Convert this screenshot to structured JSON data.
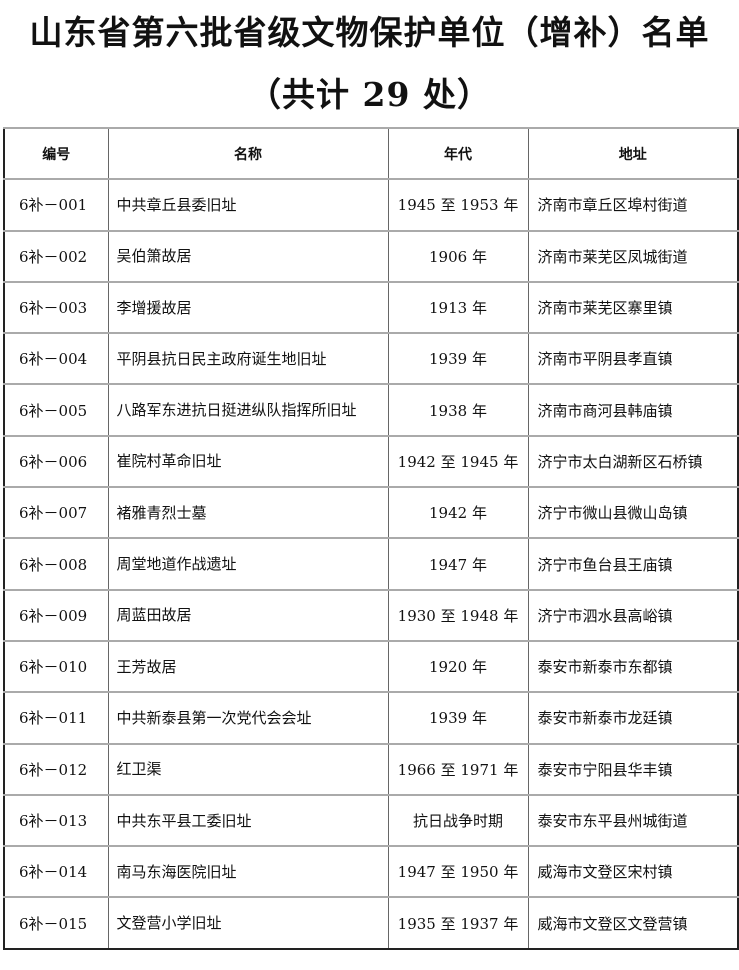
{
  "title": "山东省第六批省级文物保护单位（增补）名单",
  "subtitle": "（共计 29 处）",
  "table": {
    "headers": [
      "编号",
      "名称",
      "年代",
      "地址"
    ],
    "rows": [
      [
        "6补－001",
        "中共章丘县委旧址",
        "1945 至 1953 年",
        "济南市章丘区埠村街道"
      ],
      [
        "6补－002",
        "吴伯箫故居",
        "1906 年",
        "济南市莱芜区凤城街道"
      ],
      [
        "6补－003",
        "李增援故居",
        "1913 年",
        "济南市莱芜区寨里镇"
      ],
      [
        "6补－004",
        "平阴县抗日民主政府诞生地旧址",
        "1939 年",
        "济南市平阴县孝直镇"
      ],
      [
        "6补－005",
        "八路军东进抗日挺进纵队指挥所旧址",
        "1938 年",
        "济南市商河县韩庙镇"
      ],
      [
        "6补－006",
        "崔院村革命旧址",
        "1942 至 1945 年",
        "济宁市太白湖新区石桥镇"
      ],
      [
        "6补－007",
        "褚雅青烈士墓",
        "1942 年",
        "济宁市微山县微山岛镇"
      ],
      [
        "6补－008",
        "周堂地道作战遗址",
        "1947 年",
        "济宁市鱼台县王庙镇"
      ],
      [
        "6补－009",
        "周蓝田故居",
        "1930 至 1948 年",
        "济宁市泗水县高峪镇"
      ],
      [
        "6补－010",
        "王芳故居",
        "1920 年",
        "泰安市新泰市东都镇"
      ],
      [
        "6补－011",
        "中共新泰县第一次党代会会址",
        "1939 年",
        "泰安市新泰市龙廷镇"
      ],
      [
        "6补－012",
        "红卫渠",
        "1966 至 1971 年",
        "泰安市宁阳县华丰镇"
      ],
      [
        "6补－013",
        "中共东平县工委旧址",
        "抗日战争时期",
        "泰安市东平县州城街道"
      ],
      [
        "6补－014",
        "南马东海医院旧址",
        "1947 至 1950 年",
        "威海市文登区宋村镇"
      ],
      [
        "6补－015",
        "文登营小学旧址",
        "1935 至 1937 年",
        "威海市文登区文登营镇"
      ]
    ]
  }
}
